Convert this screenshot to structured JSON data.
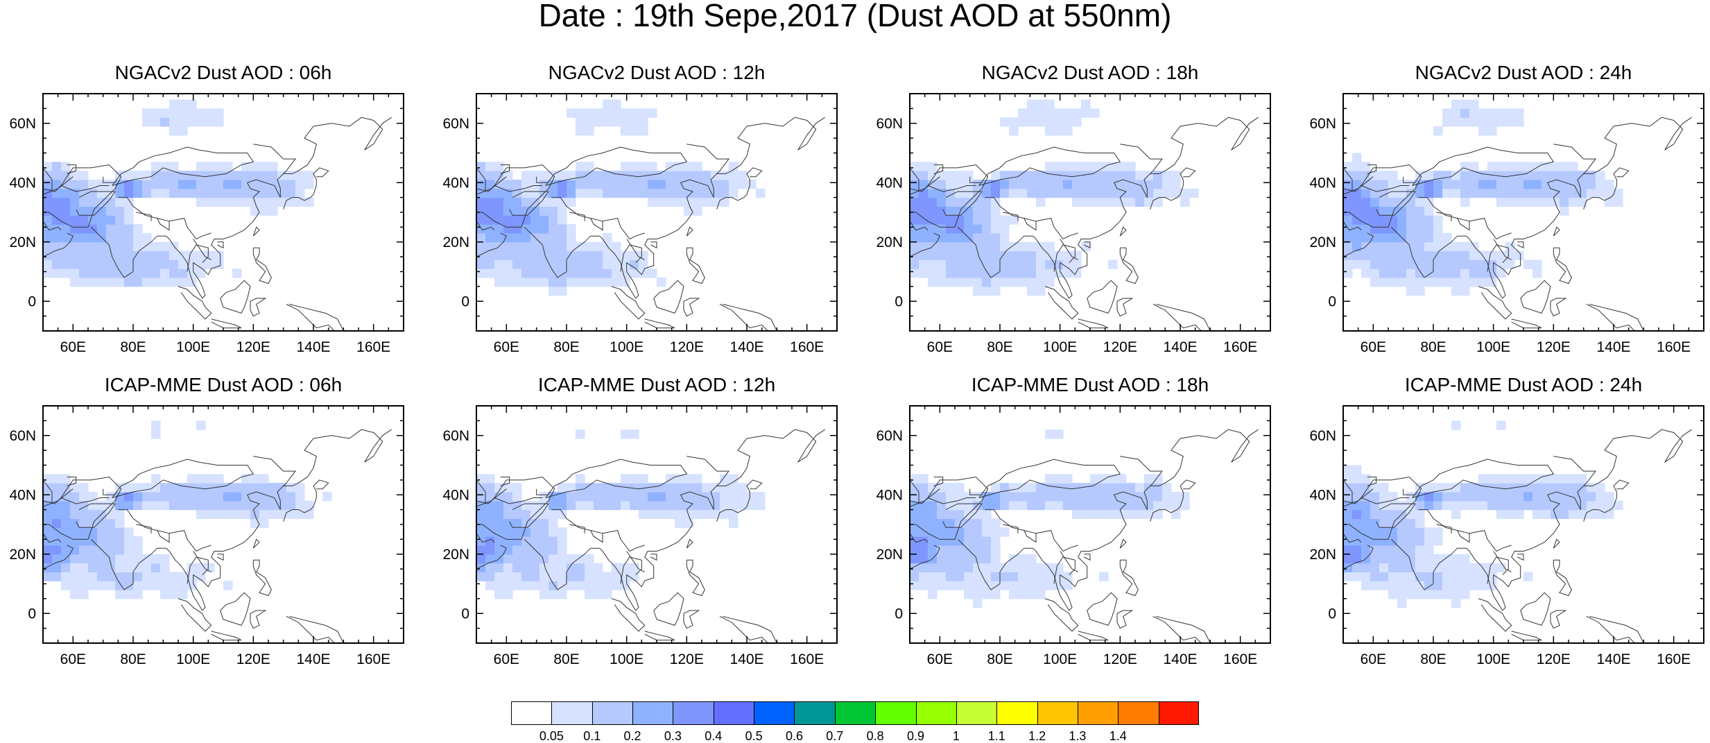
{
  "title": "Date : 19th Sepe,2017 (Dust AOD at 550nm)",
  "panels": [
    {
      "label": "NGACv2 Dust AOD : 06h",
      "model": "NGACv2",
      "hour": 6,
      "max_aod": 0.5
    },
    {
      "label": "NGACv2 Dust AOD : 12h",
      "model": "NGACv2",
      "hour": 12,
      "max_aod": 0.5
    },
    {
      "label": "NGACv2 Dust AOD : 18h",
      "model": "NGACv2",
      "hour": 18,
      "max_aod": 0.5
    },
    {
      "label": "NGACv2 Dust AOD : 24h",
      "model": "NGACv2",
      "hour": 24,
      "max_aod": 0.5
    },
    {
      "label": "ICAP-MME Dust AOD : 06h",
      "model": "ICAP-MME",
      "hour": 6,
      "max_aod": 0.4
    },
    {
      "label": "ICAP-MME Dust AOD : 12h",
      "model": "ICAP-MME",
      "hour": 12,
      "max_aod": 0.4
    },
    {
      "label": "ICAP-MME Dust AOD : 18h",
      "model": "ICAP-MME",
      "hour": 18,
      "max_aod": 0.4
    },
    {
      "label": "ICAP-MME Dust AOD : 24h",
      "model": "ICAP-MME",
      "hour": 24,
      "max_aod": 0.4
    }
  ],
  "map": {
    "lon_range": [
      50,
      170
    ],
    "lat_range": [
      -10,
      70
    ],
    "lon_ticks": [
      "60E",
      "80E",
      "100E",
      "120E",
      "140E",
      "160E"
    ],
    "lon_tick_values": [
      60,
      80,
      100,
      120,
      140,
      160
    ],
    "lat_ticks": [
      "0",
      "20N",
      "40N",
      "60N"
    ],
    "lat_tick_values": [
      0,
      20,
      40,
      60
    ]
  },
  "colorbar": {
    "labels": [
      "0.05",
      "0.1",
      "0.2",
      "0.3",
      "0.4",
      "0.5",
      "0.6",
      "0.7",
      "0.8",
      "0.9",
      "1",
      "1.1",
      "1.2",
      "1.3",
      "1.4"
    ],
    "colors": [
      "#ffffff",
      "#d6e2ff",
      "#b5c9ff",
      "#8eb2ff",
      "#7f96ff",
      "#6370ff",
      "#0063ff",
      "#009696",
      "#00c633",
      "#63ff00",
      "#96ff00",
      "#c6ff33",
      "#ffff00",
      "#ffc600",
      "#ffa000",
      "#ff7c00",
      "#ff1900"
    ]
  }
}
